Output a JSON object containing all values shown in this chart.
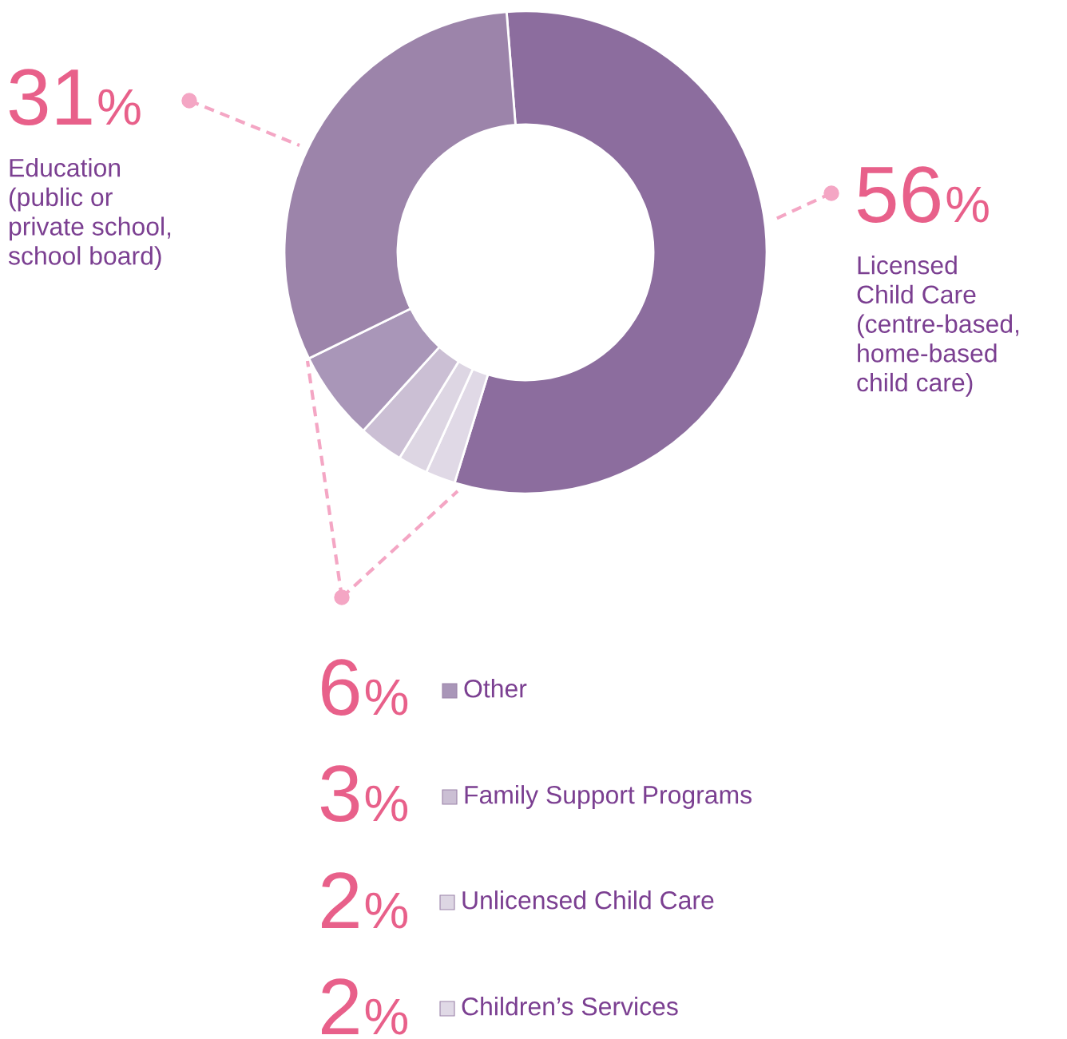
{
  "chart_data": {
    "type": "donut",
    "categories": [
      "Licensed\nChild Care\n(centre-based,\nhome-based\nchild care)",
      "Children’s Services",
      "Unlicensed Child Care",
      "Family Support Programs",
      "Other",
      "Education\n(public or\nprivate school,\nschool board)"
    ],
    "values": [
      56,
      2,
      2,
      3,
      6,
      31
    ],
    "colors": [
      "#8c6d9e",
      "#e0d9e6",
      "#ddd6e3",
      "#cbbfd4",
      "#a996b8",
      "#9c84aa"
    ],
    "value_labels": [
      "56%",
      "2%",
      "2%",
      "3%",
      "6%",
      "31%"
    ],
    "legend": "bottom"
  }
}
